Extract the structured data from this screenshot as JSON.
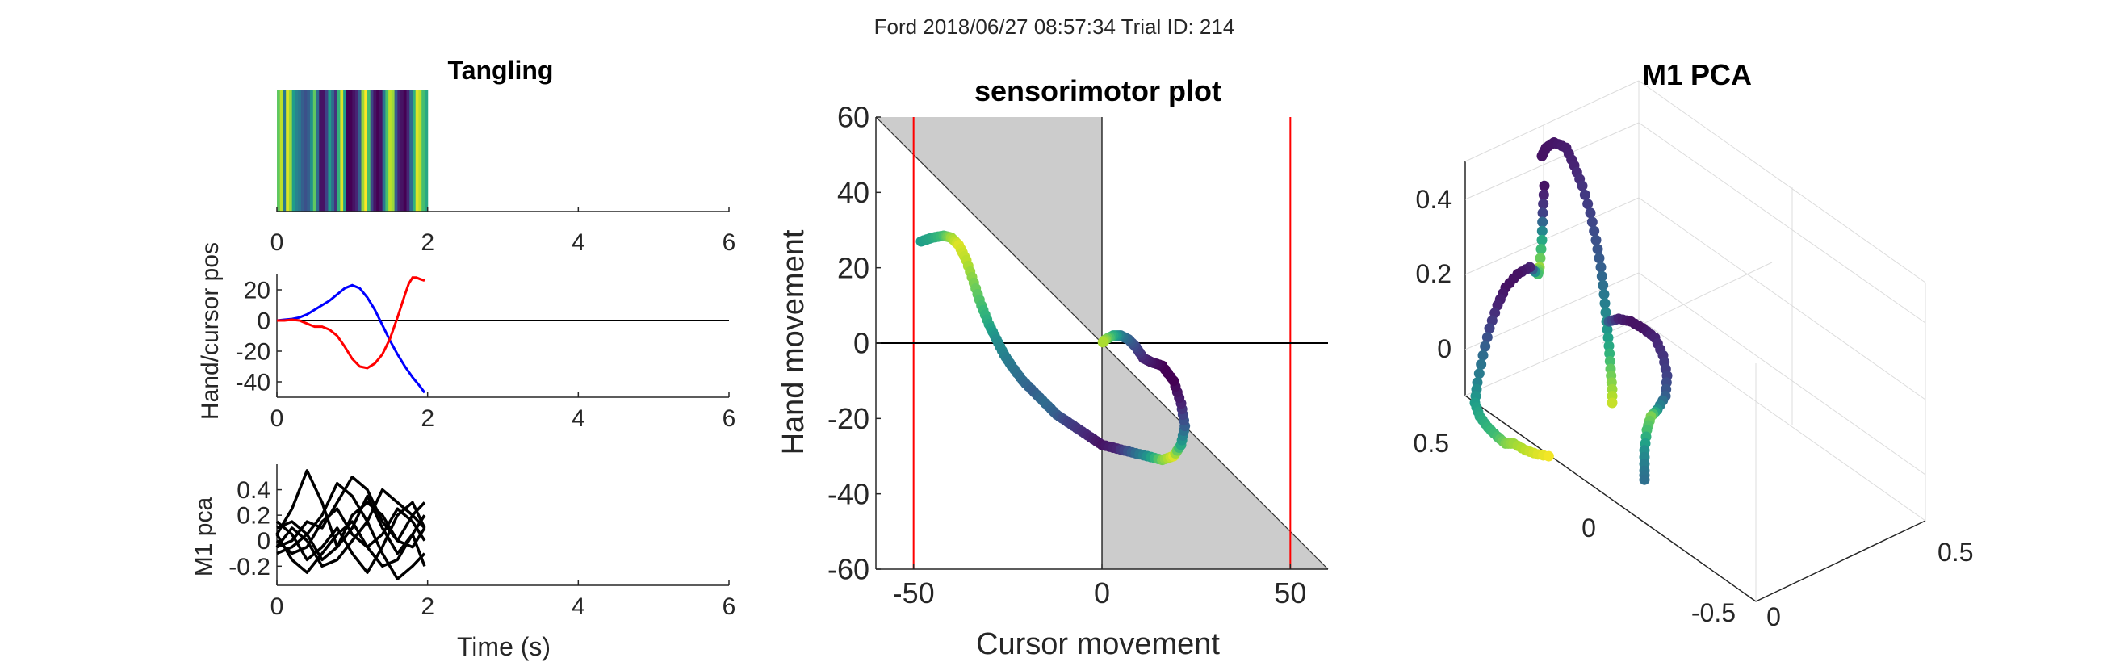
{
  "figure": {
    "suptitle": "Ford 2018/06/27 08:57:34 Trial ID: 214"
  },
  "chart_data": [
    {
      "id": "tangling",
      "type": "heatmap",
      "title": "Tangling",
      "xlim": [
        0,
        6
      ],
      "xticks": [
        0,
        2,
        4,
        6
      ],
      "colormap": "viridis",
      "x": [
        0.0,
        0.04,
        0.08,
        0.12,
        0.16,
        0.2,
        0.24,
        0.28,
        0.32,
        0.36,
        0.4,
        0.44,
        0.48,
        0.52,
        0.56,
        0.6,
        0.64,
        0.68,
        0.72,
        0.76,
        0.8,
        0.84,
        0.88,
        0.92,
        0.96,
        1.0,
        1.04,
        1.08,
        1.12,
        1.16,
        1.2,
        1.24,
        1.28,
        1.32,
        1.36,
        1.4,
        1.44,
        1.48,
        1.52,
        1.56,
        1.6,
        1.64,
        1.68,
        1.72,
        1.76,
        1.8,
        1.84,
        1.88,
        1.92,
        1.96
      ],
      "values": [
        0.75,
        0.9,
        0.4,
        0.95,
        0.85,
        0.55,
        0.45,
        0.4,
        0.3,
        0.25,
        0.3,
        0.5,
        0.75,
        0.35,
        0.05,
        0.05,
        0.2,
        0.55,
        0.35,
        0.15,
        0.65,
        0.95,
        0.55,
        0.0,
        0.0,
        0.05,
        0.1,
        0.3,
        0.85,
        1.0,
        0.7,
        0.2,
        0.05,
        0.0,
        0.05,
        0.4,
        0.7,
        0.9,
        0.85,
        0.3,
        0.1,
        0.05,
        0.0,
        0.1,
        0.35,
        0.65,
        0.95,
        0.9,
        0.7,
        0.6
      ]
    },
    {
      "id": "hand-cursor",
      "type": "line",
      "xlim": [
        0,
        6
      ],
      "ylim": [
        -50,
        30
      ],
      "xticks": [
        0,
        2,
        4,
        6
      ],
      "yticks": [
        -40,
        -20,
        0,
        20
      ],
      "ylabel": "Hand/cursor pos",
      "series": [
        {
          "color": "#0000FF",
          "x": [
            0,
            0.1,
            0.2,
            0.3,
            0.4,
            0.5,
            0.6,
            0.7,
            0.8,
            0.9,
            1.0,
            1.1,
            1.2,
            1.3,
            1.4,
            1.5,
            1.6,
            1.7,
            1.8,
            1.9,
            1.96
          ],
          "y": [
            0,
            0.5,
            1,
            2,
            4,
            7,
            10,
            13,
            17,
            21,
            23,
            21,
            15,
            7,
            -3,
            -13,
            -22,
            -30,
            -37,
            -43,
            -47
          ]
        },
        {
          "color": "#FF0000",
          "x": [
            0,
            0.1,
            0.2,
            0.3,
            0.4,
            0.5,
            0.6,
            0.7,
            0.8,
            0.9,
            1.0,
            1.1,
            1.2,
            1.3,
            1.4,
            1.5,
            1.6,
            1.7,
            1.75,
            1.8,
            1.85,
            1.9,
            1.96
          ],
          "y": [
            0,
            0,
            0.5,
            0,
            -2,
            -4,
            -4,
            -6,
            -10,
            -17,
            -25,
            -30,
            -31,
            -28,
            -22,
            -12,
            2,
            17,
            24,
            28,
            28,
            27,
            26
          ]
        }
      ],
      "hline": 0
    },
    {
      "id": "m1-pca-traces",
      "type": "line",
      "xlim": [
        0,
        6
      ],
      "ylim": [
        -0.35,
        0.6
      ],
      "xticks": [
        0,
        2,
        4,
        6
      ],
      "yticks": [
        -0.2,
        0,
        0.2,
        0.4
      ],
      "ylabel": "M1 pca",
      "xlabel": "Time (s)",
      "x": [
        0,
        0.2,
        0.4,
        0.6,
        0.8,
        1.0,
        1.2,
        1.4,
        1.6,
        1.8,
        1.96
      ],
      "series": [
        {
          "color": "#000000",
          "y": [
            0.05,
            0.25,
            0.55,
            0.3,
            -0.05,
            0.1,
            0.35,
            0.1,
            -0.1,
            0.05,
            0.2
          ]
        },
        {
          "color": "#000000",
          "y": [
            0.1,
            0.15,
            0.05,
            0.2,
            0.45,
            0.35,
            0.15,
            0.4,
            0.3,
            0.2,
            0.3
          ]
        },
        {
          "color": "#000000",
          "y": [
            -0.05,
            0.0,
            0.15,
            0.1,
            0.3,
            0.5,
            0.4,
            0.15,
            0.0,
            0.2,
            0.1
          ]
        },
        {
          "color": "#000000",
          "y": [
            0.0,
            -0.1,
            -0.05,
            0.15,
            0.25,
            0.05,
            -0.05,
            0.05,
            0.25,
            0.15,
            0.0
          ]
        },
        {
          "color": "#000000",
          "y": [
            -0.1,
            -0.05,
            0.05,
            -0.15,
            -0.05,
            0.2,
            0.3,
            0.2,
            0.0,
            -0.05,
            0.1
          ]
        },
        {
          "color": "#000000",
          "y": [
            0.15,
            0.05,
            -0.15,
            -0.05,
            0.1,
            -0.1,
            -0.25,
            -0.05,
            0.2,
            0.3,
            0.1
          ]
        },
        {
          "color": "#000000",
          "y": [
            -0.05,
            0.1,
            0.0,
            -0.2,
            -0.15,
            0.0,
            0.15,
            -0.1,
            -0.3,
            -0.2,
            -0.1
          ]
        },
        {
          "color": "#000000",
          "y": [
            0.05,
            -0.15,
            -0.25,
            -0.1,
            0.05,
            0.15,
            -0.05,
            -0.2,
            -0.15,
            0.05,
            -0.2
          ]
        }
      ]
    },
    {
      "id": "sensorimotor",
      "type": "scatter",
      "title": "sensorimotor plot",
      "xlabel": "Cursor movement",
      "ylabel": "Hand movement",
      "xlim": [
        -60,
        60
      ],
      "ylim": [
        -60,
        60
      ],
      "xticks": [
        -50,
        0,
        50
      ],
      "yticks": [
        -60,
        -40,
        -20,
        0,
        20,
        40,
        60
      ],
      "shading": "gray regions between the diagonal y=-x and the y-axis",
      "vlines": [
        {
          "x": -50,
          "color": "#FF0000"
        },
        {
          "x": 50,
          "color": "#FF0000"
        },
        {
          "x": 0,
          "color": "#000000"
        }
      ],
      "hline": 0,
      "colormap": "viridis",
      "points": [
        [
          -48,
          27,
          0.55
        ],
        [
          -45,
          28,
          0.6
        ],
        [
          -42,
          28.5,
          0.7
        ],
        [
          -40,
          28,
          0.85
        ],
        [
          -38,
          26,
          0.95
        ],
        [
          -36,
          22,
          0.9
        ],
        [
          -34,
          16,
          0.8
        ],
        [
          -32,
          10,
          0.7
        ],
        [
          -30,
          5,
          0.6
        ],
        [
          -28,
          1,
          0.5
        ],
        [
          -26,
          -3,
          0.45
        ],
        [
          -24,
          -6,
          0.4
        ],
        [
          -21,
          -10,
          0.35
        ],
        [
          -18,
          -13,
          0.3
        ],
        [
          -15,
          -16,
          0.35
        ],
        [
          -12,
          -19,
          0.3
        ],
        [
          -9,
          -21,
          0.2
        ],
        [
          -6,
          -23,
          0.15
        ],
        [
          -3,
          -25,
          0.1
        ],
        [
          0,
          -27,
          0.05
        ],
        [
          4,
          -28,
          0.1
        ],
        [
          8,
          -29,
          0.3
        ],
        [
          12,
          -30,
          0.5
        ],
        [
          16,
          -31,
          0.8
        ],
        [
          19,
          -30,
          0.95
        ],
        [
          21,
          -27,
          0.6
        ],
        [
          22,
          -22,
          0.3
        ],
        [
          21,
          -16,
          0.1
        ],
        [
          19,
          -10,
          0.0
        ],
        [
          16,
          -6,
          0.0
        ],
        [
          13,
          -5,
          0.05
        ],
        [
          11,
          -4,
          0.1
        ],
        [
          9,
          -1,
          0.2
        ],
        [
          7,
          1,
          0.3
        ],
        [
          5,
          2,
          0.4
        ],
        [
          3,
          2,
          0.6
        ],
        [
          1,
          1,
          0.8
        ],
        [
          0,
          0,
          0.9
        ]
      ]
    },
    {
      "id": "m1-pca-3d",
      "type": "scatter",
      "title": "M1 PCA",
      "axes3d": {
        "zticks": [
          0,
          0.2,
          0.4
        ],
        "yticks": [
          0,
          0.5
        ],
        "xticks": [
          -0.5,
          0,
          0.5
        ]
      },
      "colormap": "viridis",
      "projected_points": [
        [
          1195,
          118,
          0.05
        ],
        [
          1200,
          112,
          0.05
        ],
        [
          1210,
          108,
          0.06
        ],
        [
          1225,
          112,
          0.08
        ],
        [
          1235,
          125,
          0.1
        ],
        [
          1245,
          140,
          0.15
        ],
        [
          1255,
          160,
          0.2
        ],
        [
          1262,
          180,
          0.25
        ],
        [
          1268,
          200,
          0.3
        ],
        [
          1272,
          220,
          0.4
        ],
        [
          1275,
          240,
          0.5
        ],
        [
          1278,
          258,
          0.6
        ],
        [
          1280,
          275,
          0.75
        ],
        [
          1282,
          290,
          0.85
        ],
        [
          1282,
          305,
          0.95
        ],
        [
          1198,
          140,
          0.05
        ],
        [
          1196,
          160,
          0.2
        ],
        [
          1195,
          180,
          0.6
        ],
        [
          1192,
          200,
          0.85
        ],
        [
          1190,
          205,
          0.7
        ],
        [
          1180,
          200,
          0.1
        ],
        [
          1165,
          205,
          0.05
        ],
        [
          1150,
          215,
          0.05
        ],
        [
          1140,
          228,
          0.1
        ],
        [
          1130,
          245,
          0.2
        ],
        [
          1122,
          265,
          0.35
        ],
        [
          1115,
          285,
          0.45
        ],
        [
          1112,
          300,
          0.55
        ],
        [
          1118,
          310,
          0.6
        ],
        [
          1128,
          318,
          0.65
        ],
        [
          1140,
          325,
          0.7
        ],
        [
          1150,
          330,
          0.8
        ],
        [
          1160,
          330,
          0.85
        ],
        [
          1175,
          335,
          0.9
        ],
        [
          1190,
          338,
          0.95
        ],
        [
          1210,
          340,
          1.0
        ],
        [
          1278,
          240,
          0.3
        ],
        [
          1290,
          238,
          0.1
        ],
        [
          1305,
          240,
          0.05
        ],
        [
          1320,
          245,
          0.05
        ],
        [
          1335,
          252,
          0.1
        ],
        [
          1345,
          265,
          0.15
        ],
        [
          1350,
          280,
          0.2
        ],
        [
          1348,
          295,
          0.3
        ],
        [
          1338,
          305,
          0.5
        ],
        [
          1330,
          310,
          0.8
        ],
        [
          1325,
          320,
          0.7
        ],
        [
          1322,
          335,
          0.5
        ],
        [
          1322,
          350,
          0.4
        ],
        [
          1322,
          360,
          0.35
        ]
      ]
    }
  ]
}
